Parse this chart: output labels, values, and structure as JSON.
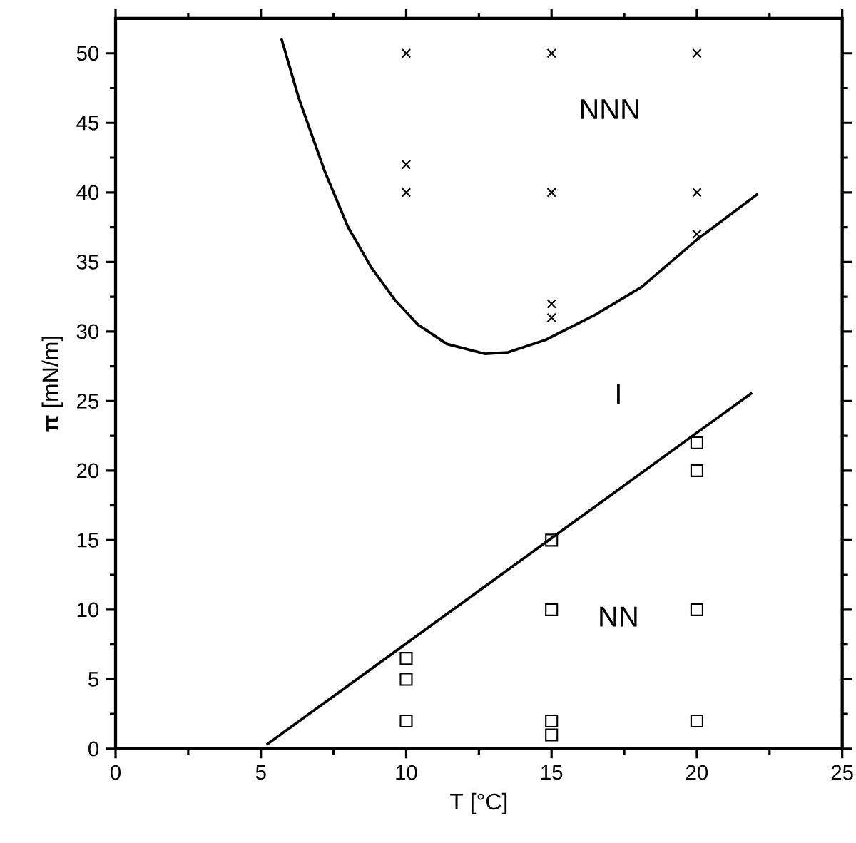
{
  "chart_data": {
    "type": "scatter",
    "xlabel": "T [°C]",
    "ylabel": "**π** [mN/m]",
    "xlim": [
      0,
      25
    ],
    "ylim": [
      0,
      52.5
    ],
    "xticks": [
      0,
      5,
      10,
      15,
      20,
      25
    ],
    "yticks": [
      0,
      5,
      10,
      15,
      20,
      25,
      30,
      35,
      40,
      45,
      50
    ],
    "grid": false,
    "series": [
      {
        "marker": "cross",
        "color": "#000000",
        "x": [
          10,
          10,
          10,
          15,
          15,
          15,
          15,
          20,
          20,
          20
        ],
        "values": [
          50,
          42,
          40,
          50,
          40,
          32,
          31,
          50,
          40,
          37
        ]
      },
      {
        "marker": "square",
        "color": "#000000",
        "x": [
          10,
          10,
          10,
          15,
          15,
          15,
          15,
          20,
          20,
          20,
          20
        ],
        "values": [
          6.5,
          5,
          2,
          15,
          10,
          2,
          1,
          22,
          20,
          10,
          2
        ]
      },
      {
        "type": "line",
        "marker": "none",
        "line_style": "solid",
        "color": "#000000",
        "x": [
          5.7,
          6.3,
          7.2,
          8.0,
          8.8,
          9.6,
          10.4,
          11.4,
          12.7,
          13.5,
          14.8,
          16.5,
          18.1,
          20.0,
          22.1
        ],
        "values": [
          51.1,
          46.8,
          41.5,
          37.5,
          34.6,
          32.3,
          30.5,
          29.1,
          28.4,
          28.5,
          29.4,
          31.2,
          33.2,
          36.6,
          39.9
        ]
      },
      {
        "type": "line",
        "marker": "none",
        "line_style": "solid",
        "color": "#000000",
        "x": [
          5.2,
          21.9
        ],
        "values": [
          0.3,
          25.6
        ]
      }
    ],
    "annotations": [
      "NNN",
      "I",
      "NN"
    ]
  }
}
